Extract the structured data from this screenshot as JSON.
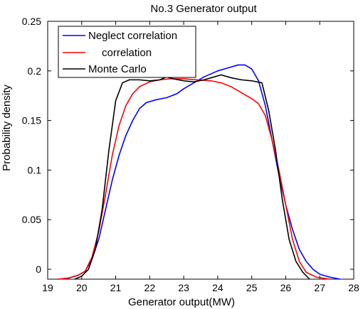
{
  "chart_data": {
    "type": "line",
    "title": "No.3 Generator output",
    "xlabel": "Generator output(MW)",
    "ylabel": "Probability density",
    "xlim": [
      19,
      28
    ],
    "ylim": [
      -0.01,
      0.25
    ],
    "x_ticks": [
      19,
      20,
      21,
      22,
      23,
      24,
      25,
      26,
      27,
      28
    ],
    "x_tick_labels": [
      "19",
      "20",
      "21",
      "22",
      "23",
      "24",
      "25",
      "26",
      "27",
      "28"
    ],
    "y_ticks": [
      0,
      0.05,
      0.1,
      0.15,
      0.2,
      0.25
    ],
    "y_tick_labels": [
      "0",
      "0.05",
      "0.1",
      "0.15",
      "0.2",
      "0.25"
    ],
    "grid": false,
    "legend_position": "top-left",
    "series": [
      {
        "name": "Neglect correlation",
        "color": "#0000ff",
        "points": [
          [
            19.3,
            -0.01
          ],
          [
            19.6,
            -0.009
          ],
          [
            19.9,
            -0.006
          ],
          [
            20.1,
            -0.002
          ],
          [
            20.3,
            0.01
          ],
          [
            20.5,
            0.03
          ],
          [
            20.7,
            0.06
          ],
          [
            20.9,
            0.09
          ],
          [
            21.1,
            0.115
          ],
          [
            21.3,
            0.135
          ],
          [
            21.5,
            0.15
          ],
          [
            21.7,
            0.162
          ],
          [
            21.9,
            0.168
          ],
          [
            22.2,
            0.171
          ],
          [
            22.5,
            0.173
          ],
          [
            22.8,
            0.177
          ],
          [
            23.0,
            0.182
          ],
          [
            23.3,
            0.188
          ],
          [
            23.6,
            0.194
          ],
          [
            24.0,
            0.2
          ],
          [
            24.3,
            0.203
          ],
          [
            24.6,
            0.206
          ],
          [
            24.8,
            0.206
          ],
          [
            25.0,
            0.202
          ],
          [
            25.2,
            0.19
          ],
          [
            25.4,
            0.165
          ],
          [
            25.6,
            0.13
          ],
          [
            25.8,
            0.095
          ],
          [
            26.0,
            0.065
          ],
          [
            26.2,
            0.04
          ],
          [
            26.4,
            0.02
          ],
          [
            26.6,
            0.008
          ],
          [
            26.8,
            0.0
          ],
          [
            27.0,
            -0.005
          ],
          [
            27.3,
            -0.008
          ],
          [
            27.6,
            -0.01
          ]
        ]
      },
      {
        "name": "correlation",
        "color": "#ff0000",
        "points": [
          [
            19.3,
            -0.01
          ],
          [
            19.6,
            -0.009
          ],
          [
            19.9,
            -0.006
          ],
          [
            20.1,
            -0.002
          ],
          [
            20.3,
            0.012
          ],
          [
            20.5,
            0.038
          ],
          [
            20.7,
            0.075
          ],
          [
            20.9,
            0.115
          ],
          [
            21.1,
            0.145
          ],
          [
            21.3,
            0.165
          ],
          [
            21.5,
            0.177
          ],
          [
            21.7,
            0.184
          ],
          [
            22.0,
            0.189
          ],
          [
            22.3,
            0.191
          ],
          [
            22.6,
            0.192
          ],
          [
            23.0,
            0.192
          ],
          [
            23.4,
            0.191
          ],
          [
            23.8,
            0.19
          ],
          [
            24.1,
            0.188
          ],
          [
            24.4,
            0.184
          ],
          [
            24.7,
            0.178
          ],
          [
            25.0,
            0.172
          ],
          [
            25.2,
            0.167
          ],
          [
            25.4,
            0.155
          ],
          [
            25.6,
            0.13
          ],
          [
            25.8,
            0.1
          ],
          [
            26.0,
            0.065
          ],
          [
            26.2,
            0.03
          ],
          [
            26.4,
            0.008
          ],
          [
            26.6,
            -0.003
          ],
          [
            26.9,
            -0.008
          ],
          [
            27.3,
            -0.01
          ]
        ]
      },
      {
        "name": "Monte Carlo",
        "color": "#000000",
        "points": [
          [
            19.8,
            -0.01
          ],
          [
            20.0,
            -0.007
          ],
          [
            20.2,
            0.0
          ],
          [
            20.4,
            0.02
          ],
          [
            20.6,
            0.06
          ],
          [
            20.8,
            0.12
          ],
          [
            21.0,
            0.17
          ],
          [
            21.2,
            0.188
          ],
          [
            21.4,
            0.191
          ],
          [
            21.7,
            0.191
          ],
          [
            22.0,
            0.19
          ],
          [
            22.3,
            0.191
          ],
          [
            22.5,
            0.194
          ],
          [
            22.7,
            0.192
          ],
          [
            23.0,
            0.19
          ],
          [
            23.3,
            0.189
          ],
          [
            23.6,
            0.191
          ],
          [
            23.9,
            0.194
          ],
          [
            24.1,
            0.196
          ],
          [
            24.4,
            0.193
          ],
          [
            24.7,
            0.191
          ],
          [
            25.0,
            0.19
          ],
          [
            25.3,
            0.188
          ],
          [
            25.5,
            0.16
          ],
          [
            25.7,
            0.12
          ],
          [
            25.9,
            0.07
          ],
          [
            26.1,
            0.03
          ],
          [
            26.3,
            0.008
          ],
          [
            26.5,
            -0.003
          ],
          [
            26.7,
            -0.01
          ]
        ]
      }
    ]
  }
}
